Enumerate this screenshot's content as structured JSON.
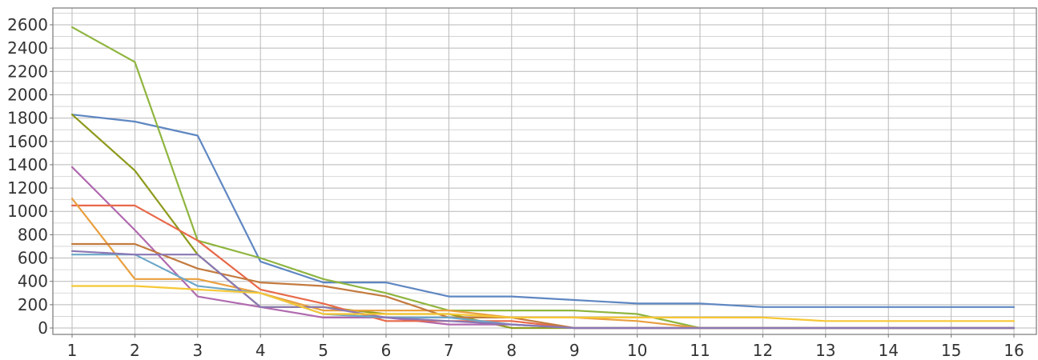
{
  "chart_data": {
    "type": "line",
    "title": "",
    "xlabel": "",
    "ylabel": "",
    "x": [
      1,
      2,
      3,
      4,
      5,
      6,
      7,
      8,
      9,
      10,
      11,
      12,
      13,
      14,
      15,
      16
    ],
    "x_tick_labels": [
      "1",
      "2",
      "3",
      "4",
      "5",
      "6",
      "7",
      "8",
      "9",
      "10",
      "11",
      "12",
      "13",
      "14",
      "15",
      "16"
    ],
    "y_tick_labels": [
      "0",
      "200",
      "400",
      "600",
      "800",
      "1000",
      "1200",
      "1400",
      "1600",
      "1800",
      "2000",
      "2200",
      "2400",
      "2600"
    ],
    "xlim": [
      0.7,
      16.35
    ],
    "ylim": [
      -50,
      2700
    ],
    "grid": true,
    "legend": "none",
    "series": [
      {
        "color": "#5f87c2",
        "values": [
          1830,
          1770,
          1650,
          570,
          390,
          390,
          270,
          270,
          240,
          210,
          210,
          180,
          180,
          180,
          180,
          180
        ]
      },
      {
        "color": "#8fb53f",
        "values": [
          2580,
          2280,
          750,
          600,
          420,
          300,
          150,
          150,
          150,
          120,
          0,
          0,
          0,
          0,
          0,
          0
        ]
      },
      {
        "color": "#8e9a1c",
        "values": [
          1830,
          1350,
          630,
          180,
          180,
          120,
          120,
          0,
          0,
          0,
          0,
          0,
          0,
          0,
          0,
          0
        ]
      },
      {
        "color": "#b06aaf",
        "values": [
          1380,
          840,
          270,
          180,
          90,
          90,
          30,
          30,
          0,
          0,
          0,
          0,
          0,
          0,
          0,
          0
        ]
      },
      {
        "color": "#e8694a",
        "values": [
          1050,
          1050,
          750,
          330,
          210,
          60,
          60,
          60,
          0,
          0,
          0,
          0,
          0,
          0,
          0,
          0
        ]
      },
      {
        "color": "#e99f3e",
        "values": [
          1110,
          420,
          420,
          300,
          150,
          150,
          150,
          90,
          90,
          60,
          0,
          0,
          0,
          0,
          0,
          0
        ]
      },
      {
        "color": "#c37b3f",
        "values": [
          720,
          720,
          510,
          390,
          360,
          270,
          90,
          90,
          0,
          0,
          0,
          0,
          0,
          0,
          0,
          0
        ]
      },
      {
        "color": "#6ea7c8",
        "values": [
          630,
          630,
          360,
          300,
          120,
          90,
          90,
          30,
          0,
          0,
          0,
          0,
          0,
          0,
          0,
          0
        ]
      },
      {
        "color": "#8a77b5",
        "values": [
          660,
          630,
          630,
          180,
          180,
          90,
          60,
          30,
          0,
          0,
          0,
          0,
          0,
          0,
          0,
          0
        ]
      },
      {
        "color": "#f6c735",
        "values": [
          360,
          360,
          330,
          300,
          120,
          120,
          120,
          90,
          90,
          90,
          90,
          90,
          60,
          60,
          60,
          60
        ]
      }
    ]
  }
}
